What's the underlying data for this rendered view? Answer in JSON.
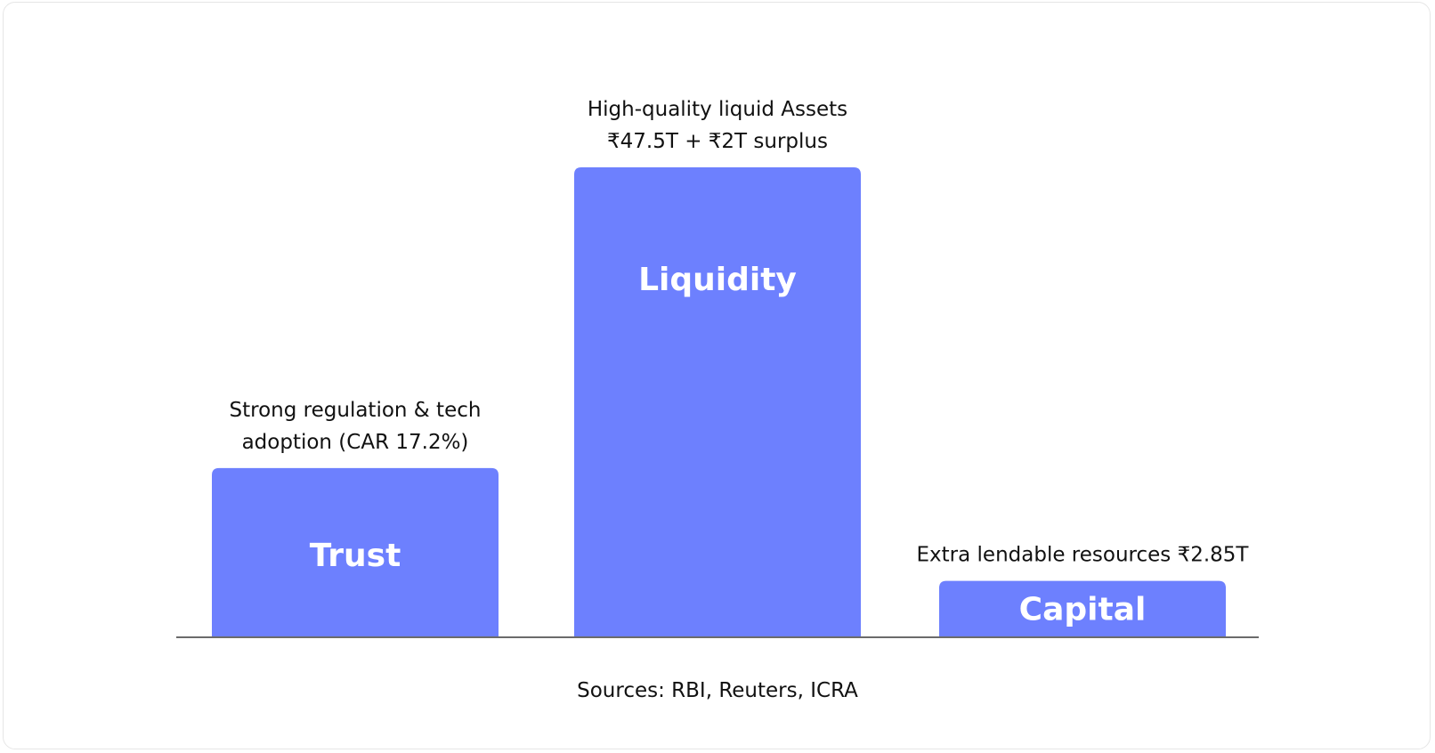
{
  "chart_data": {
    "type": "bar",
    "categories": [
      "Trust",
      "Liquidity",
      "Capital"
    ],
    "values": [
      36,
      100,
      12
    ],
    "annotations": [
      [
        "Strong regulation & tech",
        "adoption (CAR 17.2%)"
      ],
      [
        "High-quality liquid Assets",
        "₹47.5T + ₹2T surplus"
      ],
      [
        "Extra lendable resources ₹2.85T"
      ]
    ],
    "colors": {
      "bar": "#6d80fe",
      "bar_label": "#ffffff",
      "baseline": "#6b6b6b"
    },
    "ylim": [
      0,
      100
    ],
    "grid": false,
    "legend": "none",
    "title": "",
    "xlabel": "",
    "ylabel": ""
  },
  "source_note": "Sources: RBI, Reuters, ICRA"
}
